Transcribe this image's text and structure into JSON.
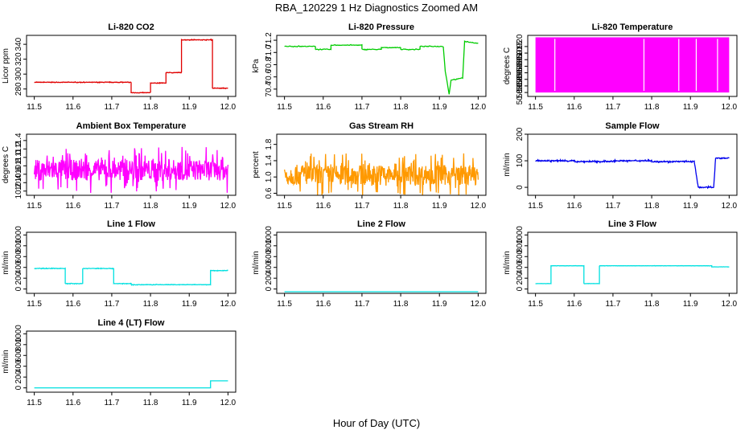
{
  "figure": {
    "title": "RBA_120229  1 Hz Diagnostics Zoomed AM",
    "xlabel": "Hour of Day (UTC)"
  },
  "chart_data": [
    {
      "type": "line",
      "title": "Li-820 CO2",
      "ylabel": "Licor ppm",
      "color": "#e00000",
      "xlim": [
        11.48,
        12.02
      ],
      "ylim": [
        270,
        352
      ],
      "xticks": [
        "11.5",
        "11.6",
        "11.7",
        "11.8",
        "11.9",
        "12.0"
      ],
      "yticks": [
        {
          "v": 280,
          "label": "280"
        },
        {
          "v": 300,
          "label": "300"
        },
        {
          "v": 320,
          "label": "320"
        },
        {
          "v": 340,
          "label": "340"
        }
      ],
      "x": [
        11.5,
        11.75,
        11.75,
        11.8,
        11.8,
        11.84,
        11.84,
        11.88,
        11.88,
        11.96,
        11.96,
        12.0
      ],
      "values": [
        289,
        289,
        275,
        275,
        288,
        288,
        302,
        302,
        346,
        346,
        281,
        281
      ],
      "noise": 0.6
    },
    {
      "type": "line",
      "title": "Li-820 Pressure",
      "ylabel": "kPa",
      "color": "#00cc00",
      "xlim": [
        11.48,
        12.02
      ],
      "ylim": [
        70.28,
        71.28
      ],
      "xticks": [
        "11.5",
        "11.6",
        "11.7",
        "11.8",
        "11.9",
        "12.0"
      ],
      "yticks": [
        {
          "v": 70.4,
          "label": "70.4"
        },
        {
          "v": 70.6,
          "label": "70.6"
        },
        {
          "v": 70.8,
          "label": "70.8"
        },
        {
          "v": 71.0,
          "label": "71.0"
        },
        {
          "v": 71.2,
          "label": "71.2"
        }
      ],
      "x": [
        11.5,
        11.58,
        11.58,
        11.62,
        11.62,
        11.7,
        11.7,
        11.75,
        11.75,
        11.8,
        11.8,
        11.85,
        11.85,
        11.91,
        11.915,
        11.925,
        11.93,
        11.96,
        11.965,
        12.0
      ],
      "values": [
        71.1,
        71.1,
        71.05,
        71.05,
        71.12,
        71.12,
        71.05,
        71.05,
        71.08,
        71.08,
        71.05,
        71.05,
        71.1,
        71.1,
        70.7,
        70.32,
        70.55,
        70.58,
        71.18,
        71.15
      ],
      "noise": 0.01
    },
    {
      "type": "line",
      "title": "Li-820 Temperature",
      "ylabel": "degrees C",
      "color": "#ff00ff",
      "xlim": [
        11.48,
        12.02
      ],
      "ylim": [
        50.882,
        50.9285
      ],
      "xticks": [
        "11.5",
        "11.6",
        "11.7",
        "11.8",
        "11.9",
        "12.0"
      ],
      "yticks": [
        {
          "v": 50.885,
          "label": "50.885"
        },
        {
          "v": 50.89,
          "label": "50.890"
        },
        {
          "v": 50.895,
          "label": "50.895"
        },
        {
          "v": 50.9,
          "label": "50.900"
        },
        {
          "v": 50.905,
          "label": "50.905"
        },
        {
          "v": 50.91,
          "label": "50.910"
        },
        {
          "v": 50.915,
          "label": "50.915"
        },
        {
          "v": 50.92,
          "label": "50.920"
        }
      ],
      "x": [
        11.5,
        12.0
      ],
      "values": [
        50.885,
        50.927
      ],
      "fill": true
    },
    {
      "type": "line",
      "title": "Ambient Box Temperature",
      "ylabel": "degrees C",
      "color": "#ff00ff",
      "xlim": [
        11.48,
        12.02
      ],
      "ylim": [
        10.1,
        11.55
      ],
      "xticks": [
        "11.5",
        "11.6",
        "11.7",
        "11.8",
        "11.9",
        "12.0"
      ],
      "yticks": [
        {
          "v": 10.2,
          "label": "10.2"
        },
        {
          "v": 10.4,
          "label": "10.4"
        },
        {
          "v": 10.6,
          "label": "10.6"
        },
        {
          "v": 10.8,
          "label": "10.8"
        },
        {
          "v": 11.0,
          "label": "11.0"
        },
        {
          "v": 11.2,
          "label": "11.2"
        },
        {
          "v": 11.4,
          "label": "11.4"
        }
      ],
      "x": [
        11.5,
        12.0
      ],
      "values": [
        10.7,
        10.7
      ],
      "noise": 0.55
    },
    {
      "type": "line",
      "title": "Gas Stream RH",
      "ylabel": "percent",
      "color": "#ff9900",
      "xlim": [
        11.48,
        12.02
      ],
      "ylim": [
        0.55,
        2.05
      ],
      "xticks": [
        "11.5",
        "11.6",
        "11.7",
        "11.8",
        "11.9",
        "12.0"
      ],
      "yticks": [
        {
          "v": 0.6,
          "label": "0.6"
        },
        {
          "v": 1.0,
          "label": "1.0"
        },
        {
          "v": 1.4,
          "label": "1.4"
        },
        {
          "v": 1.8,
          "label": "1.8"
        }
      ],
      "x": [
        11.5,
        12.0
      ],
      "values": [
        1.05,
        1.05
      ],
      "noise": 0.55
    },
    {
      "type": "line",
      "title": "Sample Flow",
      "ylabel": "ml/min",
      "color": "#0000ee",
      "xlim": [
        11.48,
        12.02
      ],
      "ylim": [
        -30,
        200
      ],
      "xticks": [
        "11.5",
        "11.6",
        "11.7",
        "11.8",
        "11.9",
        "12.0"
      ],
      "yticks": [
        {
          "v": 0,
          "label": "0"
        },
        {
          "v": 100,
          "label": "100"
        },
        {
          "v": 200,
          "label": "200"
        }
      ],
      "x": [
        11.5,
        11.6,
        11.6,
        11.7,
        11.7,
        11.8,
        11.8,
        11.91,
        11.92,
        11.96,
        11.965,
        12.0
      ],
      "values": [
        100,
        100,
        97,
        97,
        100,
        100,
        97,
        97,
        0,
        0,
        110,
        110
      ],
      "noise": 4
    },
    {
      "type": "line",
      "title": "Line 1 Flow",
      "ylabel": "ml/min",
      "color": "#00e0e0",
      "xlim": [
        11.48,
        12.02
      ],
      "ylim": [
        -80,
        1050
      ],
      "xticks": [
        "11.5",
        "11.6",
        "11.7",
        "11.8",
        "11.9",
        "12.0"
      ],
      "yticks": [
        {
          "v": 0,
          "label": "0"
        },
        {
          "v": 200,
          "label": "200"
        },
        {
          "v": 400,
          "label": "400"
        },
        {
          "v": 600,
          "label": "600"
        },
        {
          "v": 800,
          "label": "800"
        },
        {
          "v": 1000,
          "label": "1000"
        }
      ],
      "x": [
        11.5,
        11.58,
        11.58,
        11.625,
        11.625,
        11.705,
        11.705,
        11.75,
        11.75,
        11.955,
        11.955,
        12.0
      ],
      "values": [
        380,
        380,
        100,
        100,
        380,
        380,
        100,
        100,
        80,
        80,
        340,
        340
      ],
      "noise": 8
    },
    {
      "type": "line",
      "title": "Line 2 Flow",
      "ylabel": "ml/min",
      "color": "#00e0e0",
      "xlim": [
        11.48,
        12.02
      ],
      "ylim": [
        -80,
        1050
      ],
      "xticks": [
        "11.5",
        "11.6",
        "11.7",
        "11.8",
        "11.9",
        "12.0"
      ],
      "yticks": [
        {
          "v": 0,
          "label": "0"
        },
        {
          "v": 200,
          "label": "200"
        },
        {
          "v": 400,
          "label": "400"
        },
        {
          "v": 600,
          "label": "600"
        },
        {
          "v": 800,
          "label": "800"
        },
        {
          "v": 1000,
          "label": "1000"
        }
      ],
      "x": [
        11.5,
        12.0
      ],
      "values": [
        -50,
        -50
      ],
      "noise": 0
    },
    {
      "type": "line",
      "title": "Line 3 Flow",
      "ylabel": "ml/min",
      "color": "#00e0e0",
      "xlim": [
        11.48,
        12.02
      ],
      "ylim": [
        -80,
        1050
      ],
      "xticks": [
        "11.5",
        "11.6",
        "11.7",
        "11.8",
        "11.9",
        "12.0"
      ],
      "yticks": [
        {
          "v": 0,
          "label": "0"
        },
        {
          "v": 200,
          "label": "200"
        },
        {
          "v": 400,
          "label": "400"
        },
        {
          "v": 600,
          "label": "600"
        },
        {
          "v": 800,
          "label": "800"
        },
        {
          "v": 1000,
          "label": "1000"
        }
      ],
      "x": [
        11.5,
        11.54,
        11.54,
        11.625,
        11.625,
        11.665,
        11.665,
        11.955,
        11.955,
        12.0
      ],
      "values": [
        100,
        100,
        430,
        430,
        100,
        100,
        430,
        430,
        410,
        410
      ],
      "noise": 3
    },
    {
      "type": "line",
      "title": "Line 4 (LT) Flow",
      "ylabel": "ml/min",
      "color": "#00e0e0",
      "xlim": [
        11.48,
        12.02
      ],
      "ylim": [
        -80,
        1050
      ],
      "xticks": [
        "11.5",
        "11.6",
        "11.7",
        "11.8",
        "11.9",
        "12.0"
      ],
      "yticks": [
        {
          "v": 0,
          "label": "0"
        },
        {
          "v": 200,
          "label": "200"
        },
        {
          "v": 400,
          "label": "400"
        },
        {
          "v": 600,
          "label": "600"
        },
        {
          "v": 800,
          "label": "800"
        },
        {
          "v": 1000,
          "label": "1000"
        }
      ],
      "x": [
        11.5,
        11.955,
        11.955,
        12.0
      ],
      "values": [
        0,
        0,
        130,
        130
      ],
      "noise": 0
    }
  ]
}
